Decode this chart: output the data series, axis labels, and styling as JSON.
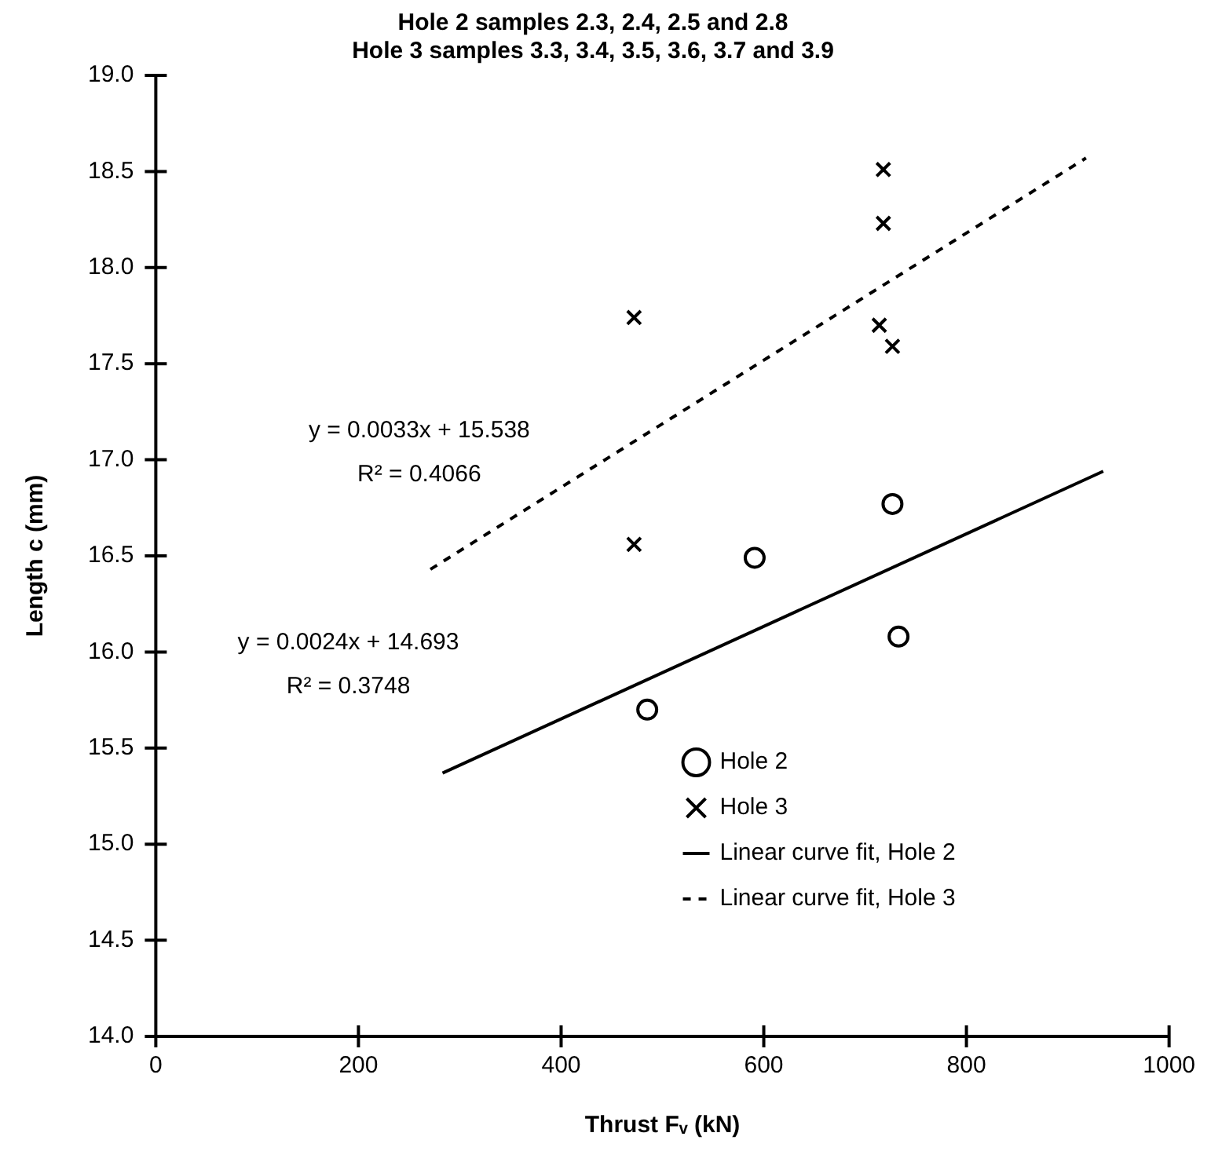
{
  "chart_data": {
    "type": "scatter",
    "title": [
      "Hole 2 samples 2.3, 2.4, 2.5 and 2.8",
      "Hole 3 samples 3.3, 3.4, 3.5, 3.6, 3.7 and 3.9"
    ],
    "xlabel": "Thrust Fᵥ (kN)",
    "ylabel": "Length c (mm)",
    "xlim": [
      0,
      1000
    ],
    "xticks": [
      0,
      200,
      400,
      600,
      800,
      1000
    ],
    "ylim": [
      14,
      19
    ],
    "yticks": [
      {
        "value": 14,
        "label": "14.0"
      },
      {
        "value": 14.5,
        "label": "14.5"
      },
      {
        "value": 15,
        "label": "15.0"
      },
      {
        "value": 15.5,
        "label": "15.5"
      },
      {
        "value": 16,
        "label": "16.0"
      },
      {
        "value": 16.5,
        "label": "16.5"
      },
      {
        "value": 17,
        "label": "17.0"
      },
      {
        "value": 17.5,
        "label": "17.5"
      },
      {
        "value": 18,
        "label": "18.0"
      },
      {
        "value": 18.5,
        "label": "18.5"
      },
      {
        "value": 19,
        "label": "19.0"
      }
    ],
    "grid": false,
    "legend": "bottom right",
    "series": [
      {
        "name": "Hole 2",
        "type": "scatter",
        "marker": "circle",
        "color": "#000000",
        "x": [
          485,
          591,
          727,
          733
        ],
        "values": [
          15.7,
          16.49,
          16.77,
          16.08
        ]
      },
      {
        "name": "Hole 3",
        "type": "scatter",
        "marker": "cross",
        "color": "#000000",
        "x": [
          472,
          472,
          718,
          718,
          714,
          727
        ],
        "values": [
          17.74,
          16.56,
          18.51,
          18.23,
          17.7,
          17.59
        ]
      },
      {
        "name": "Linear curve fit, Hole 2",
        "type": "line",
        "marker": "none",
        "line_style": "solid",
        "color": "#000000",
        "x": [
          283,
          935
        ],
        "values": [
          15.37,
          16.94
        ]
      },
      {
        "name": "Linear curve fit, Hole 3",
        "type": "line",
        "marker": "none",
        "line_style": "dashed",
        "color": "#000000",
        "x": [
          271,
          918
        ],
        "values": [
          16.43,
          18.57
        ]
      }
    ],
    "annotations": [
      "y = 0.0033x + 15.538",
      "R² = 0.4066",
      "y = 0.0024x + 14.693",
      "R² = 0.3748"
    ]
  }
}
